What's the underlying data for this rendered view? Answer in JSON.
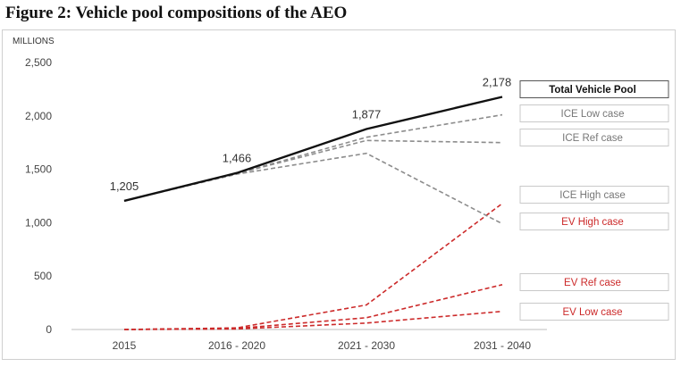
{
  "figure_title": "Figure 2: Vehicle pool compositions of the AEO",
  "chart_data": {
    "type": "line",
    "ylabel": "MILLIONS",
    "ylim": [
      0,
      2500
    ],
    "yticks": [
      "0",
      "500",
      "1,000",
      "1,500",
      "2,000",
      "2,500"
    ],
    "ytick_values": [
      0,
      500,
      1000,
      1500,
      2000,
      2500
    ],
    "categories": [
      "2015",
      "2016 - 2020",
      "2021 - 2030",
      "2031 - 2040"
    ],
    "grid": false,
    "legend": "right",
    "series": [
      {
        "name": "Total Vehicle Pool",
        "values": [
          1205,
          1466,
          1877,
          2178
        ],
        "color": "#111111",
        "style": "solid",
        "labels": [
          "1,205",
          "1,466",
          "1,877",
          "2,178"
        ]
      },
      {
        "name": "ICE Low case",
        "values": [
          1205,
          1460,
          1800,
          2010
        ],
        "color": "#8c8c8c",
        "style": "dashed"
      },
      {
        "name": "ICE Ref case",
        "values": [
          1205,
          1460,
          1770,
          1750
        ],
        "color": "#8c8c8c",
        "style": "dashed"
      },
      {
        "name": "ICE High case",
        "values": [
          1205,
          1455,
          1650,
          990
        ],
        "color": "#8c8c8c",
        "style": "dashed"
      },
      {
        "name": "EV High case",
        "values": [
          0,
          15,
          230,
          1180
        ],
        "color": "#cc2a2a",
        "style": "dashed"
      },
      {
        "name": "EV Ref case",
        "values": [
          0,
          10,
          110,
          420
        ],
        "color": "#cc2a2a",
        "style": "dashed"
      },
      {
        "name": "EV Low case",
        "values": [
          0,
          5,
          60,
          170
        ],
        "color": "#cc2a2a",
        "style": "dashed"
      }
    ]
  }
}
